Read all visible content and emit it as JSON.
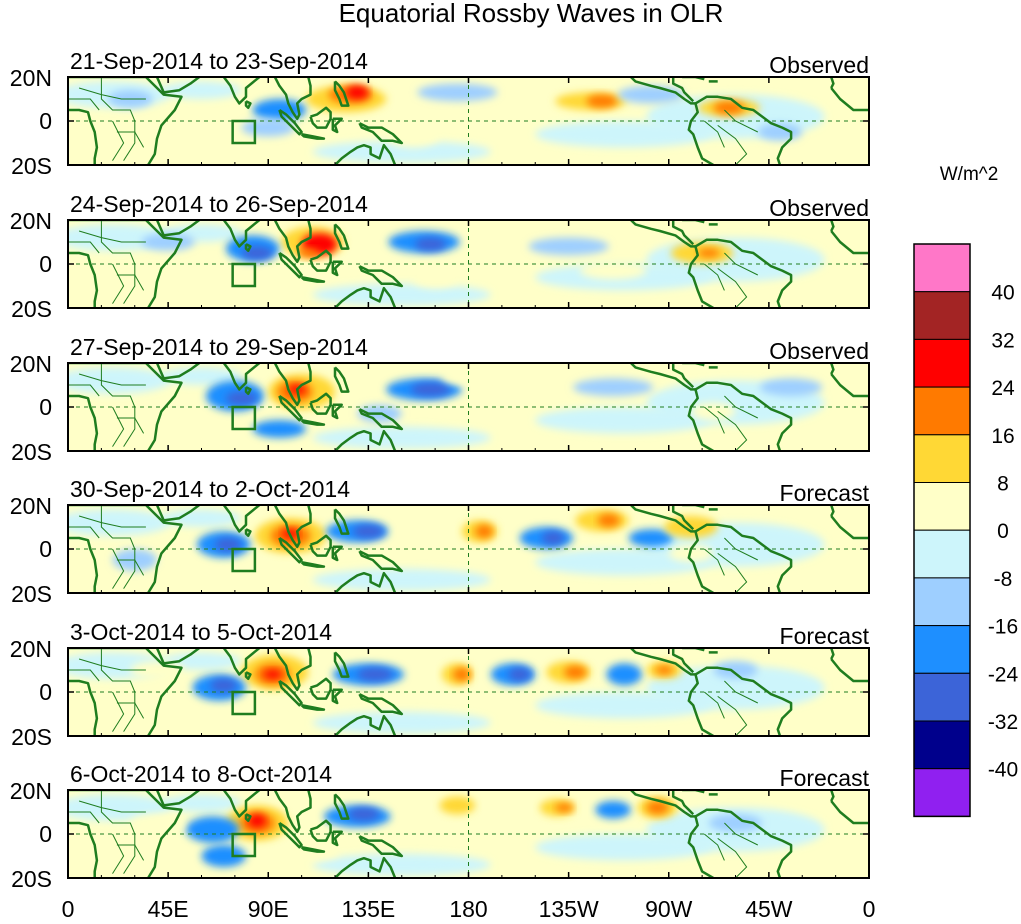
{
  "title": "Equatorial Rossby Waves in OLR",
  "units": "W/m^2",
  "lat_labels": [
    "20N",
    "0",
    "20S"
  ],
  "lon_labels": [
    "0",
    "45E",
    "90E",
    "135E",
    "180",
    "135W",
    "90W",
    "45W",
    "0"
  ],
  "panels": [
    {
      "dates": "21-Sep-2014 to 23-Sep-2014",
      "type": "Observed"
    },
    {
      "dates": "24-Sep-2014 to 26-Sep-2014",
      "type": "Observed"
    },
    {
      "dates": "27-Sep-2014 to 29-Sep-2014",
      "type": "Observed"
    },
    {
      "dates": "30-Sep-2014 to 2-Oct-2014",
      "type": "Forecast"
    },
    {
      "dates": "3-Oct-2014 to 5-Oct-2014",
      "type": "Forecast"
    },
    {
      "dates": "6-Oct-2014 to 8-Oct-2014",
      "type": "Forecast"
    }
  ],
  "colorbar": {
    "labels": [
      "40",
      "32",
      "24",
      "16",
      "8",
      "0",
      "-8",
      "-16",
      "-24",
      "-32",
      "-40"
    ],
    "colors": [
      "#ff77c8",
      "#a32424",
      "#ff0000",
      "#ff7a00",
      "#ffd835",
      "#ffffc8",
      "#cdf5fb",
      "#9ecfff",
      "#1e8fff",
      "#3c64d8",
      "#00008c",
      "#9020f0"
    ]
  },
  "colors": {
    "coast": "#1f7d1f",
    "frame": "#000000",
    "equator": "#1f7d1f"
  }
}
